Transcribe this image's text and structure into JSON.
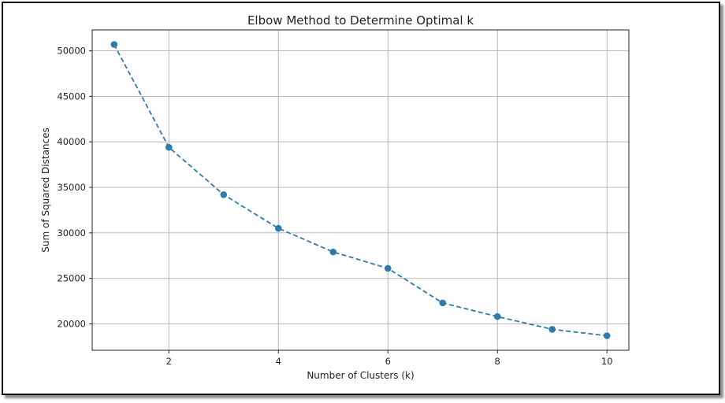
{
  "chart_data": {
    "type": "line",
    "title": "Elbow Method to Determine Optimal k",
    "xlabel": "Number of Clusters (k)",
    "ylabel": "Sum of Squared Distances",
    "x": [
      1,
      2,
      3,
      4,
      5,
      6,
      7,
      8,
      9,
      10
    ],
    "y": [
      50700,
      39400,
      34200,
      30500,
      27900,
      26100,
      22300,
      20800,
      19400,
      18700
    ],
    "xticks": [
      2,
      4,
      6,
      8,
      10
    ],
    "yticks": [
      20000,
      25000,
      30000,
      35000,
      40000,
      45000,
      50000
    ],
    "xlim": [
      0.6,
      10.4
    ],
    "ylim": [
      17100,
      52300
    ],
    "grid": true,
    "line_style": "dashed",
    "marker": "circle",
    "color": "#2e7bab"
  }
}
